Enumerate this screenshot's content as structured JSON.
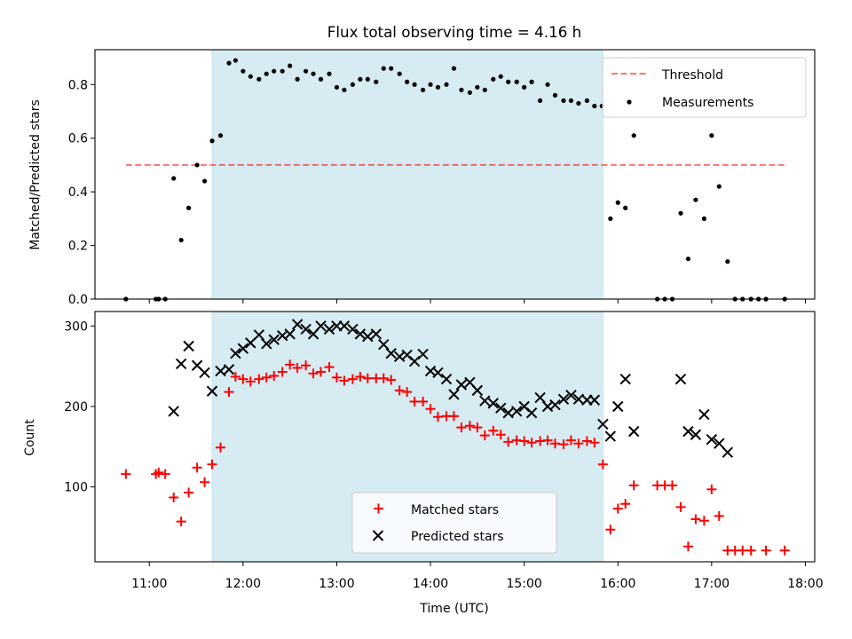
{
  "figure": {
    "title": "Flux total observing time = 4.16 h"
  },
  "colors": {
    "shade": "#add8e6",
    "threshold": "#ff0000",
    "measurements": "#000000",
    "matched": "#ff0000",
    "predicted": "#000000"
  },
  "chart_data": [
    {
      "type": "scatter",
      "title": "Flux total observing time = 4.16 h",
      "ylabel": "Matched/Predicted stars",
      "xlabel": "",
      "xlim": [
        10.42,
        18.1
      ],
      "ylim": [
        0,
        0.93
      ],
      "yticks": [
        {
          "value": 0.0,
          "label": "0.0"
        },
        {
          "value": 0.2,
          "label": "0.2"
        },
        {
          "value": 0.4,
          "label": "0.4"
        },
        {
          "value": 0.6,
          "label": "0.6"
        },
        {
          "value": 0.8,
          "label": "0.8"
        }
      ],
      "shaded_span": [
        11.67,
        15.84
      ],
      "legend_position": "top-right",
      "threshold": {
        "name": "Threshold",
        "y": 0.5,
        "x_from": 10.75,
        "x_to": 17.78
      },
      "series": [
        {
          "name": "Measurements",
          "points": [
            [
              10.75,
              0.0
            ],
            [
              11.07,
              0.0
            ],
            [
              11.1,
              0.0
            ],
            [
              11.17,
              0.0
            ],
            [
              11.26,
              0.45
            ],
            [
              11.34,
              0.22
            ],
            [
              11.42,
              0.34
            ],
            [
              11.51,
              0.5
            ],
            [
              11.59,
              0.44
            ],
            [
              11.67,
              0.59
            ],
            [
              11.76,
              0.61
            ],
            [
              11.85,
              0.88
            ],
            [
              11.92,
              0.89
            ],
            [
              12.0,
              0.85
            ],
            [
              12.08,
              0.83
            ],
            [
              12.17,
              0.82
            ],
            [
              12.25,
              0.84
            ],
            [
              12.33,
              0.85
            ],
            [
              12.42,
              0.85
            ],
            [
              12.5,
              0.87
            ],
            [
              12.58,
              0.82
            ],
            [
              12.67,
              0.85
            ],
            [
              12.75,
              0.84
            ],
            [
              12.83,
              0.82
            ],
            [
              12.92,
              0.84
            ],
            [
              13.0,
              0.79
            ],
            [
              13.08,
              0.78
            ],
            [
              13.17,
              0.8
            ],
            [
              13.25,
              0.82
            ],
            [
              13.33,
              0.82
            ],
            [
              13.42,
              0.81
            ],
            [
              13.5,
              0.86
            ],
            [
              13.58,
              0.86
            ],
            [
              13.67,
              0.84
            ],
            [
              13.75,
              0.81
            ],
            [
              13.83,
              0.8
            ],
            [
              13.92,
              0.78
            ],
            [
              14.0,
              0.8
            ],
            [
              14.08,
              0.79
            ],
            [
              14.17,
              0.8
            ],
            [
              14.25,
              0.86
            ],
            [
              14.33,
              0.78
            ],
            [
              14.42,
              0.77
            ],
            [
              14.5,
              0.79
            ],
            [
              14.58,
              0.78
            ],
            [
              14.67,
              0.82
            ],
            [
              14.75,
              0.83
            ],
            [
              14.83,
              0.81
            ],
            [
              14.92,
              0.81
            ],
            [
              15.0,
              0.79
            ],
            [
              15.08,
              0.81
            ],
            [
              15.17,
              0.74
            ],
            [
              15.25,
              0.8
            ],
            [
              15.33,
              0.76
            ],
            [
              15.42,
              0.74
            ],
            [
              15.5,
              0.74
            ],
            [
              15.58,
              0.73
            ],
            [
              15.67,
              0.74
            ],
            [
              15.75,
              0.72
            ],
            [
              15.83,
              0.72
            ],
            [
              15.92,
              0.3
            ],
            [
              16.0,
              0.36
            ],
            [
              16.08,
              0.34
            ],
            [
              16.17,
              0.61
            ],
            [
              16.42,
              0.0
            ],
            [
              16.5,
              0.0
            ],
            [
              16.58,
              0.0
            ],
            [
              16.67,
              0.32
            ],
            [
              16.75,
              0.15
            ],
            [
              16.83,
              0.37
            ],
            [
              16.92,
              0.3
            ],
            [
              17.0,
              0.61
            ],
            [
              17.08,
              0.42
            ],
            [
              17.17,
              0.14
            ],
            [
              17.25,
              0.0
            ],
            [
              17.33,
              0.0
            ],
            [
              17.42,
              0.0
            ],
            [
              17.5,
              0.0
            ],
            [
              17.58,
              0.0
            ],
            [
              17.78,
              0.0
            ]
          ]
        }
      ]
    },
    {
      "type": "scatter",
      "title": "",
      "ylabel": "Count",
      "xlabel": "Time (UTC)",
      "xlim": [
        10.42,
        18.1
      ],
      "ylim": [
        7,
        318
      ],
      "yticks": [
        {
          "value": 100,
          "label": "100"
        },
        {
          "value": 200,
          "label": "200"
        },
        {
          "value": 300,
          "label": "300"
        }
      ],
      "xticks": [
        {
          "value": 11,
          "label": "11:00"
        },
        {
          "value": 12,
          "label": "12:00"
        },
        {
          "value": 13,
          "label": "13:00"
        },
        {
          "value": 14,
          "label": "14:00"
        },
        {
          "value": 15,
          "label": "15:00"
        },
        {
          "value": 16,
          "label": "16:00"
        },
        {
          "value": 17,
          "label": "17:00"
        },
        {
          "value": 18,
          "label": "18:00"
        }
      ],
      "shaded_span": [
        11.67,
        15.84
      ],
      "legend_position": "bottom-center",
      "series": [
        {
          "name": "Matched stars",
          "marker": "plus",
          "points": [
            [
              10.75,
              116
            ],
            [
              11.07,
              116
            ],
            [
              11.1,
              118
            ],
            [
              11.17,
              116
            ],
            [
              11.26,
              87
            ],
            [
              11.34,
              57
            ],
            [
              11.42,
              93
            ],
            [
              11.51,
              124
            ],
            [
              11.59,
              106
            ],
            [
              11.67,
              128
            ],
            [
              11.76,
              149
            ],
            [
              11.85,
              218
            ],
            [
              11.92,
              237
            ],
            [
              12.0,
              234
            ],
            [
              12.08,
              231
            ],
            [
              12.17,
              234
            ],
            [
              12.25,
              236
            ],
            [
              12.33,
              238
            ],
            [
              12.42,
              243
            ],
            [
              12.5,
              252
            ],
            [
              12.58,
              248
            ],
            [
              12.67,
              251
            ],
            [
              12.75,
              241
            ],
            [
              12.83,
              243
            ],
            [
              12.92,
              249
            ],
            [
              13.0,
              236
            ],
            [
              13.08,
              232
            ],
            [
              13.17,
              234
            ],
            [
              13.25,
              237
            ],
            [
              13.33,
              235
            ],
            [
              13.42,
              235
            ],
            [
              13.5,
              235
            ],
            [
              13.58,
              233
            ],
            [
              13.67,
              220
            ],
            [
              13.75,
              218
            ],
            [
              13.83,
              206
            ],
            [
              13.92,
              206
            ],
            [
              14.0,
              197
            ],
            [
              14.08,
              187
            ],
            [
              14.17,
              188
            ],
            [
              14.25,
              188
            ],
            [
              14.33,
              174
            ],
            [
              14.42,
              176
            ],
            [
              14.5,
              174
            ],
            [
              14.58,
              164
            ],
            [
              14.67,
              170
            ],
            [
              14.75,
              165
            ],
            [
              14.83,
              156
            ],
            [
              14.92,
              158
            ],
            [
              15.0,
              157
            ],
            [
              15.08,
              155
            ],
            [
              15.17,
              157
            ],
            [
              15.25,
              158
            ],
            [
              15.33,
              154
            ],
            [
              15.42,
              153
            ],
            [
              15.5,
              158
            ],
            [
              15.58,
              154
            ],
            [
              15.67,
              157
            ],
            [
              15.75,
              155
            ],
            [
              15.84,
              128
            ],
            [
              15.92,
              47
            ],
            [
              16.0,
              73
            ],
            [
              16.08,
              79
            ],
            [
              16.17,
              102
            ],
            [
              16.42,
              102
            ],
            [
              16.5,
              102
            ],
            [
              16.58,
              102
            ],
            [
              16.67,
              75
            ],
            [
              16.75,
              26
            ],
            [
              16.83,
              60
            ],
            [
              16.92,
              58
            ],
            [
              17.0,
              97
            ],
            [
              17.08,
              64
            ],
            [
              17.17,
              21
            ],
            [
              17.25,
              21
            ],
            [
              17.33,
              21
            ],
            [
              17.42,
              21
            ],
            [
              17.58,
              21
            ],
            [
              17.78,
              21
            ]
          ]
        },
        {
          "name": "Predicted stars",
          "marker": "x",
          "points": [
            [
              11.26,
              194
            ],
            [
              11.34,
              253
            ],
            [
              11.42,
              275
            ],
            [
              11.51,
              251
            ],
            [
              11.59,
              242
            ],
            [
              11.67,
              219
            ],
            [
              11.76,
              244
            ],
            [
              11.85,
              246
            ],
            [
              11.92,
              266
            ],
            [
              12.0,
              272
            ],
            [
              12.08,
              279
            ],
            [
              12.17,
              289
            ],
            [
              12.25,
              278
            ],
            [
              12.33,
              283
            ],
            [
              12.42,
              288
            ],
            [
              12.5,
              290
            ],
            [
              12.58,
              302
            ],
            [
              12.67,
              296
            ],
            [
              12.75,
              290
            ],
            [
              12.83,
              300
            ],
            [
              12.92,
              296
            ],
            [
              13.0,
              300
            ],
            [
              13.08,
              300
            ],
            [
              13.17,
              296
            ],
            [
              13.25,
              290
            ],
            [
              13.33,
              287
            ],
            [
              13.42,
              290
            ],
            [
              13.5,
              277
            ],
            [
              13.58,
              266
            ],
            [
              13.67,
              262
            ],
            [
              13.75,
              264
            ],
            [
              13.83,
              256
            ],
            [
              13.92,
              265
            ],
            [
              14.0,
              244
            ],
            [
              14.08,
              242
            ],
            [
              14.17,
              234
            ],
            [
              14.25,
              215
            ],
            [
              14.33,
              227
            ],
            [
              14.42,
              230
            ],
            [
              14.5,
              220
            ],
            [
              14.58,
              207
            ],
            [
              14.67,
              204
            ],
            [
              14.75,
              198
            ],
            [
              14.83,
              192
            ],
            [
              14.92,
              194
            ],
            [
              15.0,
              200
            ],
            [
              15.08,
              192
            ],
            [
              15.17,
              211
            ],
            [
              15.25,
              200
            ],
            [
              15.33,
              202
            ],
            [
              15.42,
              209
            ],
            [
              15.5,
              214
            ],
            [
              15.58,
              209
            ],
            [
              15.67,
              208
            ],
            [
              15.75,
              208
            ],
            [
              15.84,
              178
            ],
            [
              15.92,
              163
            ],
            [
              16.0,
              200
            ],
            [
              16.08,
              234
            ],
            [
              16.17,
              169
            ],
            [
              16.67,
              234
            ],
            [
              16.75,
              169
            ],
            [
              16.83,
              165
            ],
            [
              16.92,
              190
            ],
            [
              17.0,
              159
            ],
            [
              17.08,
              154
            ],
            [
              17.17,
              143
            ]
          ]
        }
      ]
    }
  ]
}
